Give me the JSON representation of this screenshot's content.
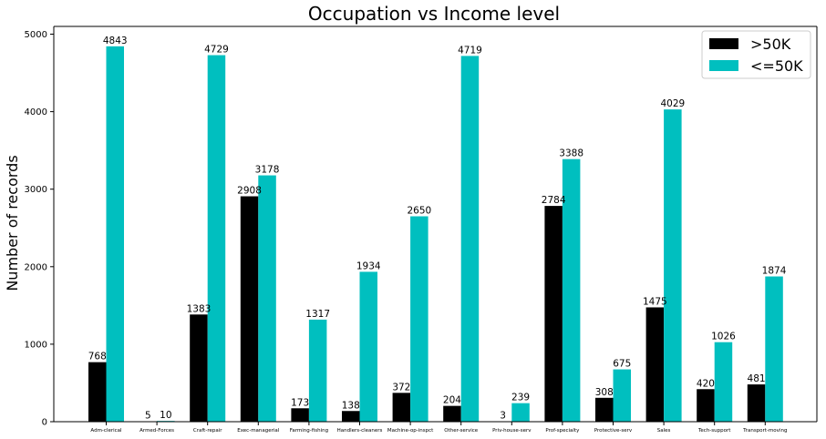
{
  "chart_data": {
    "type": "bar",
    "title": "Occupation vs Income level",
    "xlabel": "",
    "ylabel": "Number of records",
    "ylim": [
      0,
      5100
    ],
    "yticks": [
      0,
      1000,
      2000,
      3000,
      4000,
      5000
    ],
    "legend_position": "top-right",
    "grid": false,
    "categories": [
      "Adm-clerical",
      "Armed-Forces",
      "Craft-repair",
      "Exec-managerial",
      "Farming-fishing",
      "Handlers-cleaners",
      "Machine-op-inspct",
      "Other-service",
      "Priv-house-serv",
      "Prof-specialty",
      "Protective-serv",
      "Sales",
      "Tech-support",
      "Transport-moving"
    ],
    "series": [
      {
        "name": ">50K",
        "color": "#000000",
        "values": [
          768,
          5,
          1383,
          2908,
          173,
          138,
          372,
          204,
          3,
          2784,
          308,
          1475,
          420,
          481
        ]
      },
      {
        "name": "<=50K",
        "color": "#00bfbf",
        "values": [
          4843,
          10,
          4729,
          3178,
          1317,
          1934,
          2650,
          4719,
          239,
          3388,
          675,
          4029,
          1026,
          1874
        ]
      }
    ]
  }
}
